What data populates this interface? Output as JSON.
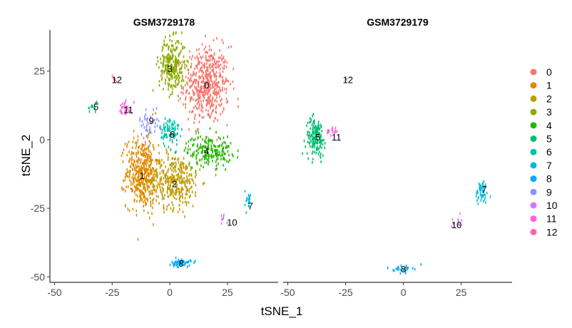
{
  "chart_data": {
    "type": "scatter",
    "xlabel": "tSNE_1",
    "ylabel": "tSNE_2",
    "xlim": [
      -52,
      47
    ],
    "ylim": [
      -52,
      40
    ],
    "xticks": [
      -50,
      -25,
      0,
      25
    ],
    "yticks": [
      -50,
      -25,
      0,
      25
    ],
    "legend_position": "right",
    "legend": [
      {
        "label": "0",
        "color": "#F8766D"
      },
      {
        "label": "1",
        "color": "#E18A00"
      },
      {
        "label": "2",
        "color": "#BE9C00"
      },
      {
        "label": "3",
        "color": "#8CAB00"
      },
      {
        "label": "4",
        "color": "#24B700"
      },
      {
        "label": "5",
        "color": "#00BE70"
      },
      {
        "label": "6",
        "color": "#00C1AB"
      },
      {
        "label": "7",
        "color": "#00BBDA"
      },
      {
        "label": "8",
        "color": "#00ACFC"
      },
      {
        "label": "9",
        "color": "#8B93FF"
      },
      {
        "label": "10",
        "color": "#D575FE"
      },
      {
        "label": "11",
        "color": "#F962DD"
      },
      {
        "label": "12",
        "color": "#FF65AC"
      }
    ],
    "panels": [
      {
        "title": "GSM3729178",
        "clusters": [
          {
            "label": "0",
            "center": [
              16,
              20
            ],
            "spread": [
              7,
              10
            ],
            "n": 520
          },
          {
            "label": "1",
            "center": [
              -12,
              -12
            ],
            "spread": [
              5,
              9
            ],
            "n": 430
          },
          {
            "label": "2",
            "center": [
              2,
              -15
            ],
            "spread": [
              8,
              7
            ],
            "n": 360
          },
          {
            "label": "3",
            "center": [
              1,
              27
            ],
            "spread": [
              4,
              7
            ],
            "n": 280
          },
          {
            "label": "4",
            "center": [
              17,
              -4
            ],
            "spread": [
              7,
              4
            ],
            "n": 200
          },
          {
            "label": "5",
            "center": [
              -33,
              12
            ],
            "spread": [
              2,
              1.5
            ],
            "n": 14
          },
          {
            "label": "6",
            "center": [
              0,
              3
            ],
            "spread": [
              3,
              4
            ],
            "n": 90
          },
          {
            "label": "7",
            "center": [
              34,
              -22
            ],
            "spread": [
              1,
              2.5
            ],
            "n": 20
          },
          {
            "label": "8",
            "center": [
              5,
              -45
            ],
            "spread": [
              3,
              1
            ],
            "n": 50
          },
          {
            "label": "9",
            "center": [
              -9,
              6
            ],
            "spread": [
              3,
              4
            ],
            "n": 45
          },
          {
            "label": "10",
            "center": [
              23,
              -29
            ],
            "spread": [
              2,
              1.5
            ],
            "n": 8
          },
          {
            "label": "11",
            "center": [
              -19,
              12
            ],
            "spread": [
              2,
              2
            ],
            "n": 25
          },
          {
            "label": "12",
            "center": [
              -24,
              22
            ],
            "spread": [
              1,
              1
            ],
            "n": 6
          }
        ],
        "label_positions": [
          {
            "label": "0",
            "x": 16,
            "y": 20
          },
          {
            "label": "1",
            "x": -12,
            "y": -13
          },
          {
            "label": "2",
            "x": 2,
            "y": -16
          },
          {
            "label": "3",
            "x": 0,
            "y": 26
          },
          {
            "label": "4",
            "x": 16,
            "y": -4
          },
          {
            "label": "5",
            "x": -32,
            "y": 12
          },
          {
            "label": "6",
            "x": 1,
            "y": 2
          },
          {
            "label": "7",
            "x": 35,
            "y": -24
          },
          {
            "label": "8",
            "x": 5,
            "y": -45
          },
          {
            "label": "9",
            "x": -8,
            "y": 7
          },
          {
            "label": "10",
            "x": 27,
            "y": -30
          },
          {
            "label": "11",
            "x": -18,
            "y": 11
          },
          {
            "label": "12",
            "x": -23,
            "y": 22
          }
        ]
      },
      {
        "title": "GSM3729179",
        "clusters": [
          {
            "label": "5",
            "center": [
              -38,
              1
            ],
            "spread": [
              3,
              5
            ],
            "n": 170
          },
          {
            "label": "11",
            "center": [
              -31,
              3
            ],
            "spread": [
              1.5,
              1.5
            ],
            "n": 15
          },
          {
            "label": "7",
            "center": [
              34,
              -19
            ],
            "spread": [
              2,
              3
            ],
            "n": 55
          },
          {
            "label": "10",
            "center": [
              23,
              -30
            ],
            "spread": [
              1.5,
              1.5
            ],
            "n": 10
          },
          {
            "label": "8",
            "center": [
              0,
              -47
            ],
            "spread": [
              3,
              1
            ],
            "n": 25
          },
          {
            "label": "12",
            "center": [
              -25,
              22
            ],
            "spread": [
              0.5,
              0.5
            ],
            "n": 2
          }
        ],
        "label_positions": [
          {
            "label": "12",
            "x": -24,
            "y": 22
          },
          {
            "label": "5",
            "x": -37,
            "y": 1
          },
          {
            "label": "11",
            "x": -29,
            "y": 1
          },
          {
            "label": "7",
            "x": 35,
            "y": -18
          },
          {
            "label": "10",
            "x": 23,
            "y": -31
          },
          {
            "label": "8",
            "x": 0,
            "y": -47
          }
        ]
      }
    ]
  }
}
